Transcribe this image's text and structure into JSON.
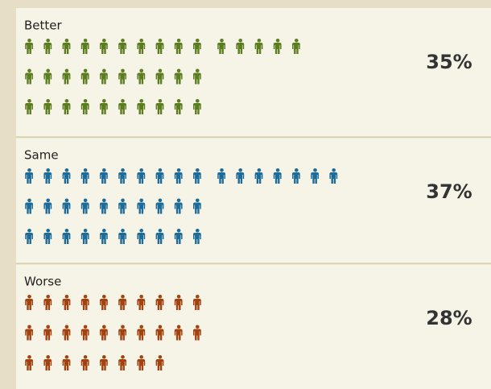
{
  "chart_data": {
    "type": "pictogram",
    "categories": [
      "Better",
      "Same",
      "Worse"
    ],
    "series": [
      {
        "values": [
          35,
          37,
          28
        ],
        "value_labels": [
          "35%",
          "37%",
          "28%"
        ]
      }
    ],
    "colors": [
      "#5b7d1f",
      "#1d6b98",
      "#a2420f"
    ]
  }
}
